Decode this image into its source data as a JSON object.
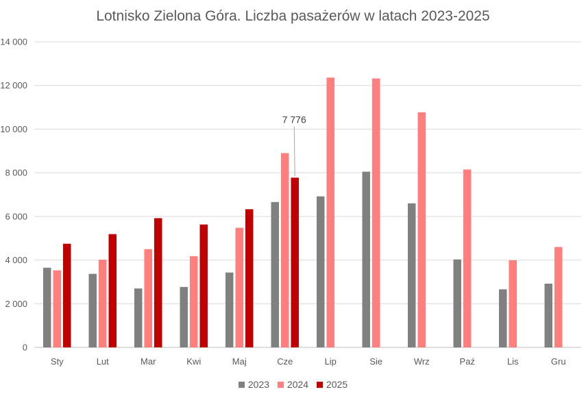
{
  "chart_data": {
    "type": "bar",
    "title": "Lotnisko Zielona Góra. Liczba pasażerów w latach 2023-2025",
    "categories": [
      "Sty",
      "Lut",
      "Mar",
      "Kwi",
      "Maj",
      "Cze",
      "Lip",
      "Sie",
      "Wrz",
      "Paź",
      "Lis",
      "Gru"
    ],
    "series": [
      {
        "name": "2023",
        "color": "#808080",
        "values": [
          3650,
          3370,
          2700,
          2770,
          3430,
          6660,
          6920,
          8050,
          6600,
          4030,
          2660,
          2920
        ]
      },
      {
        "name": "2024",
        "color": "#ff7f7f",
        "values": [
          3530,
          4020,
          4500,
          4180,
          5480,
          8900,
          12360,
          12320,
          10770,
          8150,
          3990,
          4600
        ]
      },
      {
        "name": "2025",
        "color": "#c00000",
        "values": [
          4750,
          5190,
          5920,
          5630,
          6330,
          7776,
          null,
          null,
          null,
          null,
          null,
          null
        ]
      }
    ],
    "ylim": [
      0,
      14000
    ],
    "yticks": [
      "0",
      "2 000",
      "4 000",
      "6 000",
      "8 000",
      "10 000",
      "12 000",
      "14 000"
    ],
    "annotation": {
      "series": "2025",
      "category": "Cze",
      "label": "7 776"
    },
    "grid": true,
    "legend_position": "bottom"
  }
}
